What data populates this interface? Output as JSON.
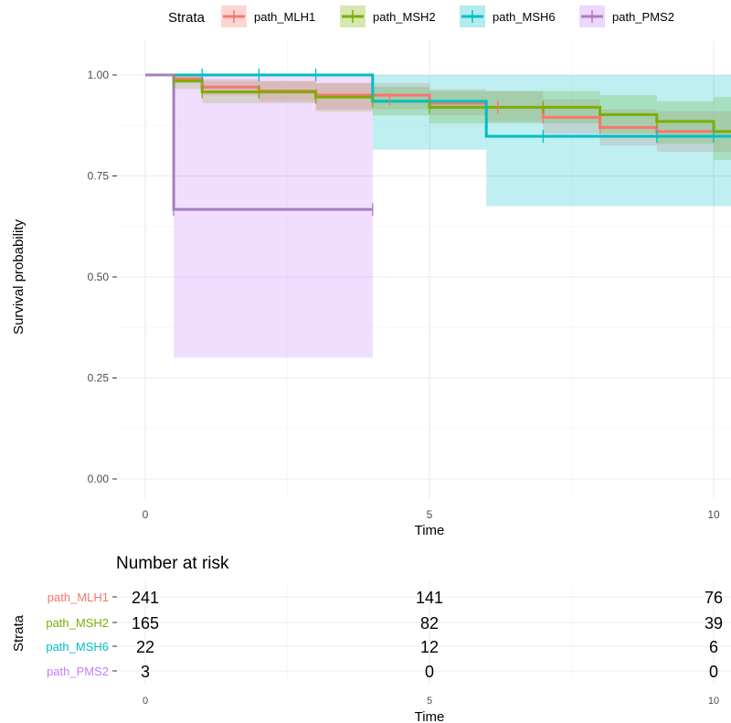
{
  "chart_data": [
    {
      "type": "line",
      "subtype": "kaplan-meier-step",
      "legend": {
        "title": "Strata",
        "placement": "top"
      },
      "xlabel": "Time",
      "ylabel": "Survival probability",
      "xlim": [
        0,
        10
      ],
      "ylim": [
        0,
        1
      ],
      "x_ticks": [
        "0",
        "5",
        "10"
      ],
      "y_ticks": [
        "0.00",
        "0.25",
        "0.50",
        "0.75",
        "1.00"
      ],
      "grid": true,
      "series": [
        {
          "name": "path_MLH1",
          "color": "#F8766D",
          "steps": [
            [
              0,
              1.0
            ],
            [
              0.5,
              0.99
            ],
            [
              1.0,
              0.97
            ],
            [
              2.0,
              0.96
            ],
            [
              3.0,
              0.95
            ],
            [
              5.0,
              0.93
            ],
            [
              6.0,
              0.92
            ],
            [
              7.0,
              0.895
            ],
            [
              8.0,
              0.87
            ],
            [
              9.0,
              0.86
            ],
            [
              10.0,
              0.86
            ]
          ],
          "ci_lower": [
            [
              0,
              1.0
            ],
            [
              0.5,
              0.98
            ],
            [
              1.0,
              0.95
            ],
            [
              2.0,
              0.935
            ],
            [
              3.0,
              0.915
            ],
            [
              5.0,
              0.9
            ],
            [
              6.0,
              0.885
            ],
            [
              7.0,
              0.855
            ],
            [
              8.0,
              0.825
            ],
            [
              9.0,
              0.81
            ],
            [
              10.0,
              0.81
            ]
          ],
          "ci_upper": [
            [
              0,
              1.0
            ],
            [
              0.5,
              1.0
            ],
            [
              1.0,
              0.99
            ],
            [
              2.0,
              0.985
            ],
            [
              3.0,
              0.98
            ],
            [
              5.0,
              0.965
            ],
            [
              6.0,
              0.96
            ],
            [
              7.0,
              0.94
            ],
            [
              8.0,
              0.915
            ],
            [
              9.0,
              0.91
            ],
            [
              10.0,
              0.91
            ]
          ],
          "censor": [
            [
              1.0,
              0.985
            ],
            [
              3.0,
              0.95
            ],
            [
              4.3,
              0.94
            ],
            [
              6.2,
              0.92
            ],
            [
              7.0,
              0.895
            ],
            [
              8.0,
              0.87
            ],
            [
              9.0,
              0.86
            ]
          ]
        },
        {
          "name": "path_MSH2",
          "color": "#7CAE00",
          "steps": [
            [
              0,
              1.0
            ],
            [
              0.5,
              0.985
            ],
            [
              1.0,
              0.958
            ],
            [
              3.0,
              0.945
            ],
            [
              4.0,
              0.935
            ],
            [
              5.0,
              0.92
            ],
            [
              8.0,
              0.902
            ],
            [
              9.0,
              0.885
            ],
            [
              10.0,
              0.86
            ]
          ],
          "ci_lower": [
            [
              0,
              1.0
            ],
            [
              0.5,
              0.965
            ],
            [
              1.0,
              0.93
            ],
            [
              3.0,
              0.91
            ],
            [
              4.0,
              0.9
            ],
            [
              5.0,
              0.88
            ],
            [
              8.0,
              0.855
            ],
            [
              9.0,
              0.83
            ],
            [
              10.0,
              0.79
            ]
          ],
          "ci_upper": [
            [
              0,
              1.0
            ],
            [
              0.5,
              1.0
            ],
            [
              1.0,
              0.985
            ],
            [
              3.0,
              0.98
            ],
            [
              4.0,
              0.97
            ],
            [
              5.0,
              0.96
            ],
            [
              8.0,
              0.95
            ],
            [
              9.0,
              0.935
            ],
            [
              10.0,
              0.945
            ]
          ],
          "censor": [
            [
              0.5,
              0.985
            ],
            [
              1.0,
              0.958
            ],
            [
              2.0,
              0.958
            ],
            [
              3.0,
              0.945
            ],
            [
              4.0,
              0.935
            ],
            [
              5.0,
              0.92
            ],
            [
              7.0,
              0.92
            ],
            [
              9.0,
              0.885
            ],
            [
              10.0,
              0.86
            ]
          ]
        },
        {
          "name": "path_MSH6",
          "color": "#00BFC4",
          "steps": [
            [
              0,
              1.0
            ],
            [
              4.0,
              0.935
            ],
            [
              6.0,
              0.848
            ],
            [
              10.0,
              0.848
            ]
          ],
          "ci_lower": [
            [
              0,
              1.0
            ],
            [
              4.0,
              0.815
            ],
            [
              6.0,
              0.675
            ],
            [
              10.0,
              0.675
            ]
          ],
          "ci_upper": [
            [
              0,
              1.0
            ],
            [
              4.0,
              1.0
            ],
            [
              6.0,
              1.0
            ],
            [
              10.0,
              1.0
            ]
          ],
          "censor": [
            [
              1.0,
              1.0
            ],
            [
              2.0,
              1.0
            ],
            [
              3.0,
              1.0
            ],
            [
              7.0,
              0.848
            ],
            [
              9.0,
              0.848
            ],
            [
              10.0,
              0.848
            ]
          ]
        },
        {
          "name": "path_PMS2",
          "color": "#C77CFF",
          "line_color": "#A57FBF",
          "steps": [
            [
              0,
              1.0
            ],
            [
              0.5,
              0.667
            ],
            [
              4.0,
              0.667
            ]
          ],
          "ci_lower": [
            [
              0,
              1.0
            ],
            [
              0.5,
              0.3
            ],
            [
              4.0,
              0.3
            ]
          ],
          "ci_upper": [
            [
              0,
              1.0
            ],
            [
              0.5,
              1.0
            ],
            [
              4.0,
              1.0
            ]
          ],
          "censor": [
            [
              0.5,
              0.667
            ],
            [
              4.0,
              0.667
            ]
          ]
        }
      ]
    },
    {
      "type": "table",
      "title": "Number at risk",
      "ylabel": "Strata",
      "xlabel": "Time",
      "x_ticks": [
        "0",
        "5",
        "10"
      ],
      "columns": [
        0,
        5,
        10
      ],
      "rows": [
        {
          "label": "path_MLH1",
          "color": "#F8766D",
          "values": [
            "241",
            "141",
            "76"
          ]
        },
        {
          "label": "path_MSH2",
          "color": "#7CAE00",
          "values": [
            "165",
            "82",
            "39"
          ]
        },
        {
          "label": "path_MSH6",
          "color": "#00BFC4",
          "values": [
            "22",
            "12",
            "6"
          ]
        },
        {
          "label": "path_PMS2",
          "color": "#C77CFF",
          "values": [
            "3",
            "0",
            "0"
          ]
        }
      ]
    }
  ]
}
